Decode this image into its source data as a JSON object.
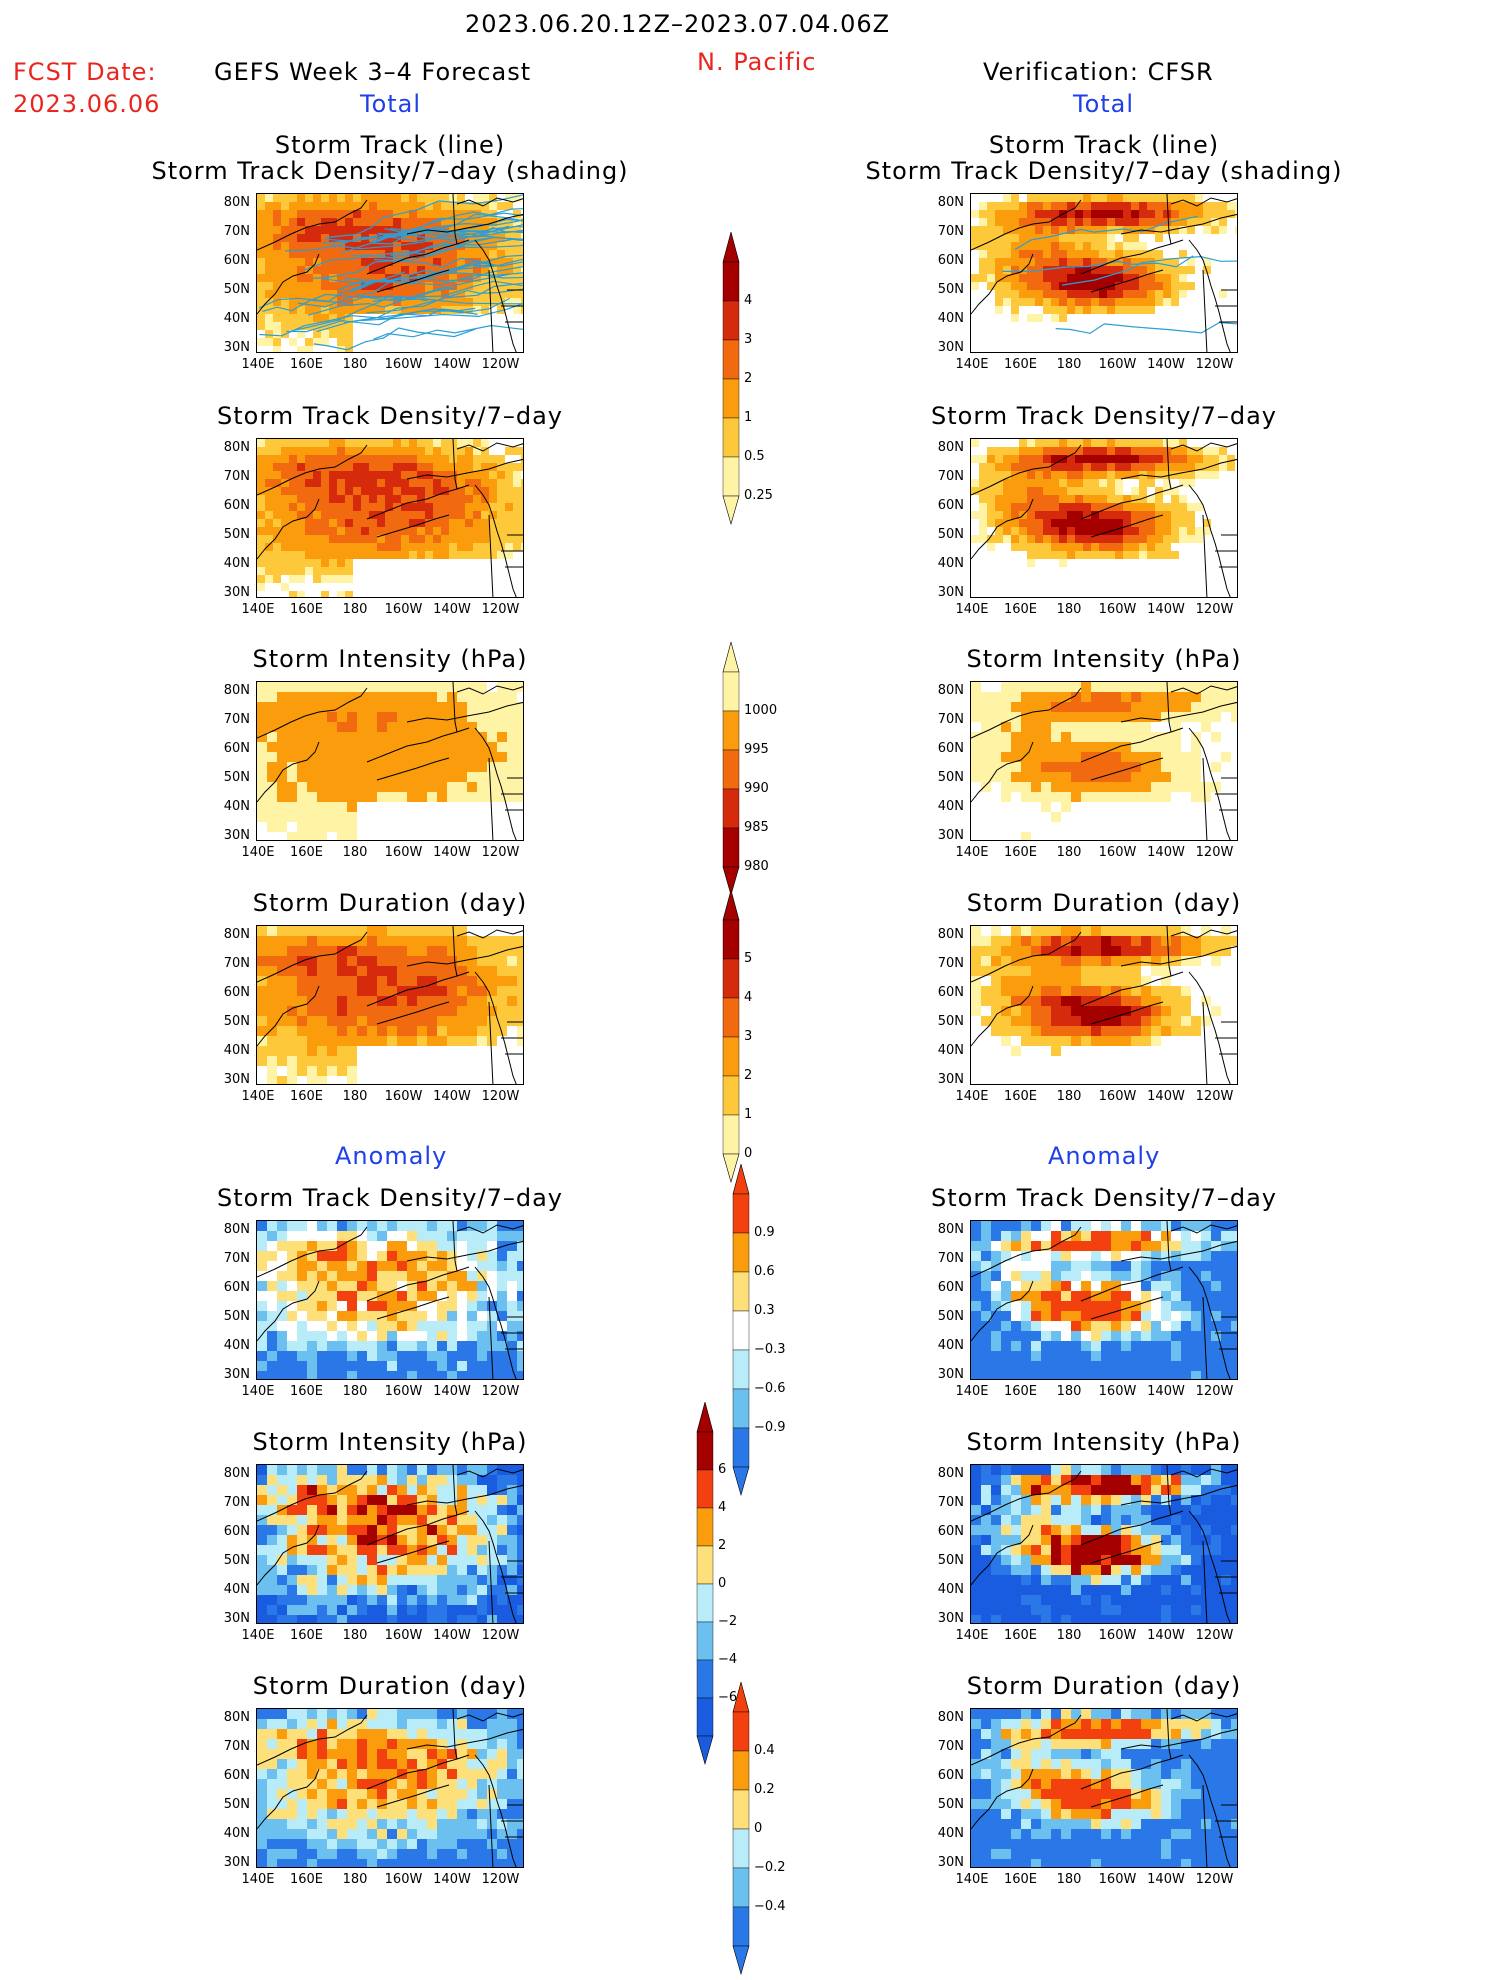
{
  "header": {
    "date_range": "2023.06.20.12Z–2023.07.04.06Z",
    "region": "N. Pacific",
    "fcst_label": "FCST Date:",
    "fcst_date": "2023.06.06",
    "left_model": "GEFS Week 3–4 Forecast",
    "right_model": "Verification: CFSR",
    "total_label": "Total",
    "anomaly_label": "Anomaly"
  },
  "axes": {
    "x_ticks": [
      "140E",
      "160E",
      "180",
      "160W",
      "140W",
      "120W"
    ],
    "y_ticks": [
      "80N",
      "70N",
      "60N",
      "50N",
      "40N",
      "30N"
    ]
  },
  "chart_data": [
    {
      "type": "heatmap",
      "id": "fc_track",
      "title_line1": "Storm Track (line)",
      "title_line2": "Storm Track Density/7–day (shading)",
      "source": "GEFS",
      "scale": "density"
    },
    {
      "type": "heatmap",
      "id": "fc_density",
      "title": "Storm Track Density/7–day",
      "source": "GEFS",
      "scale": "density"
    },
    {
      "type": "heatmap",
      "id": "fc_intensity",
      "title": "Storm Intensity (hPa)",
      "source": "GEFS",
      "scale": "intensity"
    },
    {
      "type": "heatmap",
      "id": "fc_duration",
      "title": "Storm Duration (day)",
      "source": "GEFS",
      "scale": "duration"
    },
    {
      "type": "heatmap",
      "id": "fc_density_anom",
      "title": "Storm Track Density/7–day",
      "source": "GEFS",
      "scale": "density_anom"
    },
    {
      "type": "heatmap",
      "id": "fc_intensity_anom",
      "title": "Storm Intensity (hPa)",
      "source": "GEFS",
      "scale": "intensity_anom"
    },
    {
      "type": "heatmap",
      "id": "fc_duration_anom",
      "title": "Storm Duration (day)",
      "source": "GEFS",
      "scale": "duration_anom"
    },
    {
      "type": "heatmap",
      "id": "vf_track",
      "title_line1": "Storm Track (line)",
      "title_line2": "Storm Track Density/7–day (shading)",
      "source": "CFSR",
      "scale": "density"
    },
    {
      "type": "heatmap",
      "id": "vf_density",
      "title": "Storm Track Density/7–day",
      "source": "CFSR",
      "scale": "density"
    },
    {
      "type": "heatmap",
      "id": "vf_intensity",
      "title": "Storm Intensity (hPa)",
      "source": "CFSR",
      "scale": "intensity"
    },
    {
      "type": "heatmap",
      "id": "vf_duration",
      "title": "Storm Duration (day)",
      "source": "CFSR",
      "scale": "duration"
    },
    {
      "type": "heatmap",
      "id": "vf_density_anom",
      "title": "Storm Track Density/7–day",
      "source": "CFSR",
      "scale": "density_anom"
    },
    {
      "type": "heatmap",
      "id": "vf_intensity_anom",
      "title": "Storm Intensity (hPa)",
      "source": "CFSR",
      "scale": "intensity_anom"
    },
    {
      "type": "heatmap",
      "id": "vf_duration_anom",
      "title": "Storm Duration (day)",
      "source": "CFSR",
      "scale": "duration_anom"
    }
  ],
  "colorbars": {
    "density": {
      "labels": [
        "4",
        "3",
        "2",
        "1",
        "0.5",
        "0.25"
      ],
      "colors": [
        "#a50000",
        "#d62a0c",
        "#f26a10",
        "#fa9c0c",
        "#fdc93a",
        "#fff3a6"
      ]
    },
    "intensity": {
      "labels": [
        "1000",
        "995",
        "990",
        "985",
        "980"
      ],
      "colors": [
        "#fff3a6",
        "#fa9c0c",
        "#f26a10",
        "#d62a0c",
        "#a50000"
      ]
    },
    "duration": {
      "labels": [
        "5",
        "4",
        "3",
        "2",
        "1",
        "0"
      ],
      "colors": [
        "#a50000",
        "#d62a0c",
        "#f26a10",
        "#fa9c0c",
        "#fdc93a",
        "#fff3a6"
      ]
    },
    "density_anom": {
      "labels": [
        "0.9",
        "0.6",
        "0.3",
        "−0.3",
        "−0.6",
        "−0.9"
      ],
      "colors": [
        "#f2410e",
        "#fa9c0c",
        "#fde07a",
        "#ffffff",
        "#b8ecf8",
        "#6cc0f0",
        "#2a78e8"
      ]
    },
    "intensity_anom": {
      "labels": [
        "6",
        "4",
        "2",
        "0",
        "−2",
        "−4",
        "−6"
      ],
      "colors": [
        "#a50000",
        "#f2410e",
        "#fa9c0c",
        "#fde07a",
        "#b8ecf8",
        "#6cc0f0",
        "#2a78e8",
        "#1a5ce0"
      ]
    },
    "duration_anom": {
      "labels": [
        "0.4",
        "0.2",
        "0",
        "−0.2",
        "−0.4"
      ],
      "colors": [
        "#f2410e",
        "#fa9c0c",
        "#fde07a",
        "#b8ecf8",
        "#6cc0f0",
        "#2a78e8"
      ]
    }
  }
}
